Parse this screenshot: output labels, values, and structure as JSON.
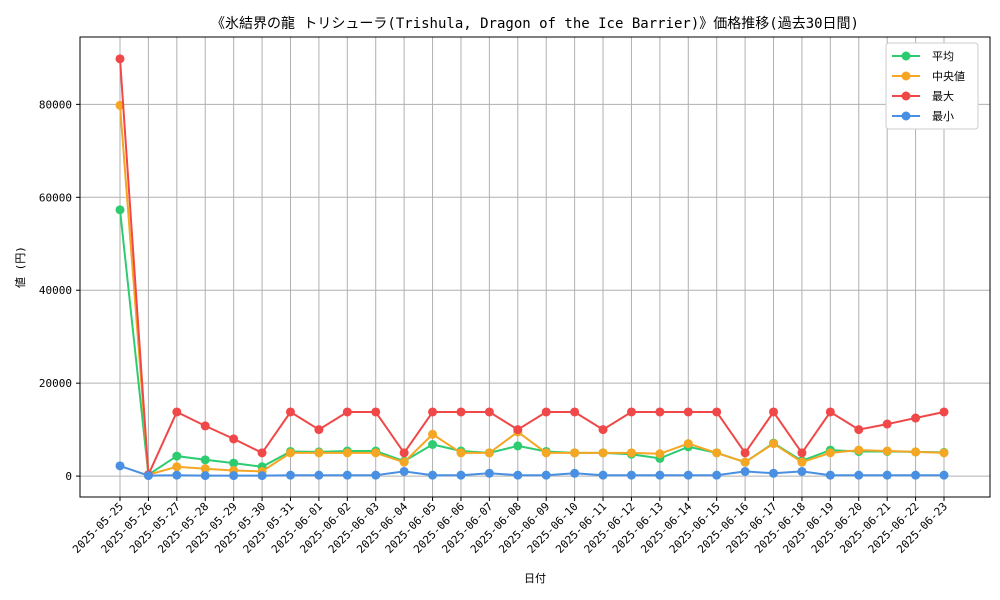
{
  "chart_data": {
    "type": "line",
    "title": "《氷結界の龍 トリシューラ(Trishula, Dragon of the Ice Barrier)》価格推移(過去30日間)",
    "xlabel": "日付",
    "ylabel": "値 (円)",
    "ylim": [
      -4500,
      94500
    ],
    "yticks": [
      0,
      20000,
      40000,
      60000,
      80000
    ],
    "grid": true,
    "legend_position": "top-right",
    "categories": [
      "2025-05-25",
      "2025-05-26",
      "2025-05-27",
      "2025-05-28",
      "2025-05-29",
      "2025-05-30",
      "2025-05-31",
      "2025-06-01",
      "2025-06-02",
      "2025-06-03",
      "2025-06-04",
      "2025-06-05",
      "2025-06-06",
      "2025-06-07",
      "2025-06-08",
      "2025-06-09",
      "2025-06-10",
      "2025-06-11",
      "2025-06-12",
      "2025-06-13",
      "2025-06-14",
      "2025-06-15",
      "2025-06-16",
      "2025-06-17",
      "2025-06-18",
      "2025-06-19",
      "2025-06-20",
      "2025-06-21",
      "2025-06-22",
      "2025-06-23"
    ],
    "series": [
      {
        "name": "平均",
        "color": "#2ecc71",
        "values": [
          57300,
          300,
          4300,
          3500,
          2800,
          2000,
          5300,
          5200,
          5400,
          5400,
          3200,
          6800,
          5400,
          5000,
          6500,
          5300,
          5000,
          5000,
          4700,
          3800,
          6300,
          5000,
          3000,
          7100,
          3300,
          5600,
          5300,
          5300,
          5200,
          5100
        ]
      },
      {
        "name": "中央値",
        "color": "#f5a623",
        "values": [
          79800,
          300,
          2000,
          1600,
          1200,
          1000,
          5000,
          5000,
          5000,
          5000,
          3000,
          9000,
          5000,
          5000,
          9500,
          5000,
          5000,
          5000,
          5000,
          4800,
          7000,
          5000,
          3000,
          7000,
          3000,
          5000,
          5600,
          5400,
          5200,
          5000
        ]
      },
      {
        "name": "最大",
        "color": "#f04848",
        "values": [
          89800,
          300,
          13800,
          10800,
          8000,
          5000,
          13800,
          10000,
          13800,
          13800,
          5000,
          13800,
          13800,
          13800,
          10000,
          13800,
          13800,
          10000,
          13800,
          13800,
          13800,
          13800,
          5000,
          13800,
          5000,
          13800,
          10000,
          11200,
          12500,
          13800
        ]
      },
      {
        "name": "最小",
        "color": "#4a90e2",
        "values": [
          2200,
          100,
          200,
          100,
          100,
          100,
          200,
          200,
          200,
          200,
          1000,
          200,
          200,
          600,
          200,
          200,
          600,
          200,
          200,
          200,
          200,
          200,
          1000,
          600,
          1000,
          200,
          200,
          200,
          200,
          200
        ]
      }
    ]
  }
}
